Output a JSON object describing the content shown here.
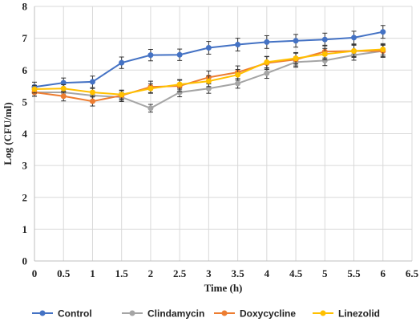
{
  "chart_data": {
    "type": "line",
    "title": "",
    "xlabel": "Time (h)",
    "ylabel": "Log (CFU/ml)",
    "xlim": [
      0,
      6.5
    ],
    "ylim": [
      0,
      8
    ],
    "x_ticks": [
      "0",
      "0.5",
      "1",
      "1.5",
      "2",
      "2.5",
      "3",
      "3.5",
      "4",
      "4.5",
      "5",
      "5.5",
      "6",
      "6.5"
    ],
    "y_ticks": [
      "0",
      "1",
      "2",
      "3",
      "4",
      "5",
      "6",
      "7",
      "8"
    ],
    "grid": "vertical and horizontal",
    "legend_position": "bottom",
    "x": [
      0,
      0.5,
      1,
      1.5,
      2,
      2.5,
      3,
      3.5,
      4,
      4.5,
      5,
      5.5,
      6
    ],
    "series": [
      {
        "name": "Control",
        "color": "#4472C4",
        "values": [
          5.47,
          5.6,
          5.63,
          6.23,
          6.47,
          6.48,
          6.7,
          6.8,
          6.88,
          6.92,
          6.96,
          7.02,
          7.2
        ],
        "errors": [
          0.15,
          0.15,
          0.18,
          0.18,
          0.18,
          0.18,
          0.2,
          0.2,
          0.2,
          0.2,
          0.2,
          0.2,
          0.2
        ]
      },
      {
        "name": "Clindamycin",
        "color": "#A5A5A5",
        "values": [
          5.3,
          5.3,
          5.2,
          5.15,
          4.8,
          5.3,
          5.42,
          5.58,
          5.9,
          6.25,
          6.3,
          6.47,
          6.6
        ],
        "errors": [
          0.12,
          0.12,
          0.14,
          0.14,
          0.12,
          0.14,
          0.15,
          0.15,
          0.16,
          0.16,
          0.16,
          0.16,
          0.18
        ]
      },
      {
        "name": "Doxycycline",
        "color": "#ED7D31",
        "values": [
          5.3,
          5.18,
          5.02,
          5.2,
          5.47,
          5.5,
          5.77,
          5.93,
          6.22,
          6.33,
          6.58,
          6.6,
          6.6
        ],
        "errors": [
          0.12,
          0.15,
          0.15,
          0.15,
          0.18,
          0.18,
          0.2,
          0.2,
          0.2,
          0.2,
          0.2,
          0.2,
          0.2
        ]
      },
      {
        "name": "Linezolid",
        "color": "#FFC000",
        "values": [
          5.4,
          5.42,
          5.3,
          5.23,
          5.42,
          5.55,
          5.65,
          5.85,
          6.25,
          6.37,
          6.5,
          6.6,
          6.65
        ],
        "errors": [
          0.12,
          0.12,
          0.12,
          0.14,
          0.15,
          0.15,
          0.17,
          0.17,
          0.18,
          0.18,
          0.18,
          0.18,
          0.18
        ]
      }
    ]
  }
}
